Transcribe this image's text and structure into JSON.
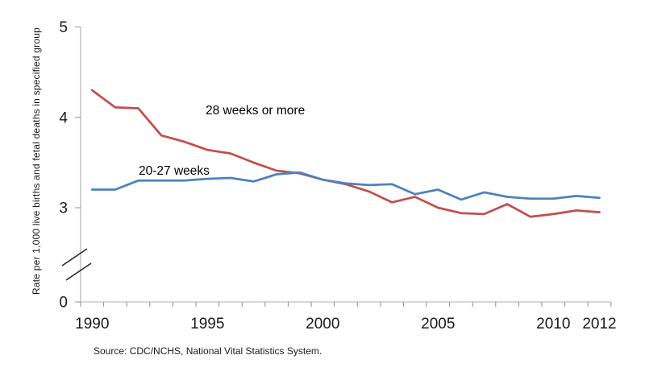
{
  "source_note": "Source: CDC/NCHS, National Vital Statistics System.",
  "chart_data": {
    "type": "line",
    "title": "",
    "xlabel": "",
    "ylabel": "Rate per 1,000 live births and fetal deaths in specified group",
    "x": [
      1990,
      1991,
      1992,
      1993,
      1994,
      1995,
      1996,
      1997,
      1998,
      1999,
      2000,
      2001,
      2002,
      2003,
      2004,
      2005,
      2006,
      2007,
      2008,
      2009,
      2010,
      2011,
      2012
    ],
    "series": [
      {
        "name": "28 weeks or more",
        "color": "#c0504d",
        "values": [
          4.3,
          4.11,
          4.1,
          3.8,
          3.73,
          3.64,
          3.6,
          3.5,
          3.41,
          3.38,
          3.31,
          3.26,
          3.18,
          3.06,
          3.12,
          3.0,
          2.94,
          2.93,
          3.04,
          2.9,
          2.93,
          2.97,
          2.95
        ]
      },
      {
        "name": "20-27 weeks",
        "color": "#4f81bd",
        "values": [
          3.2,
          3.2,
          3.3,
          3.3,
          3.3,
          3.32,
          3.33,
          3.29,
          3.37,
          3.39,
          3.31,
          3.27,
          3.25,
          3.26,
          3.15,
          3.2,
          3.09,
          3.17,
          3.12,
          3.1,
          3.1,
          3.13,
          3.11
        ]
      }
    ],
    "x_ticks": [
      {
        "label": "1990",
        "year": 1990
      },
      {
        "label": "1995",
        "year": 1995
      },
      {
        "label": "2000",
        "year": 2000
      },
      {
        "label": "2005",
        "year": 2005
      },
      {
        "label": "2010",
        "year": 2010
      },
      {
        "label": "2012",
        "year": 2012
      }
    ],
    "y_ticks": [
      {
        "label": "5",
        "value": 5
      },
      {
        "label": "4",
        "value": 4
      },
      {
        "label": "3",
        "value": 3
      },
      {
        "label": "0",
        "value": 0
      }
    ],
    "ylim": [
      0,
      5
    ],
    "axis_break": true,
    "grid": false,
    "legend": "inline-labels",
    "axis_color": "#bfbfbf",
    "tick_color": "#8c8c8c",
    "break_color": "#262626"
  }
}
